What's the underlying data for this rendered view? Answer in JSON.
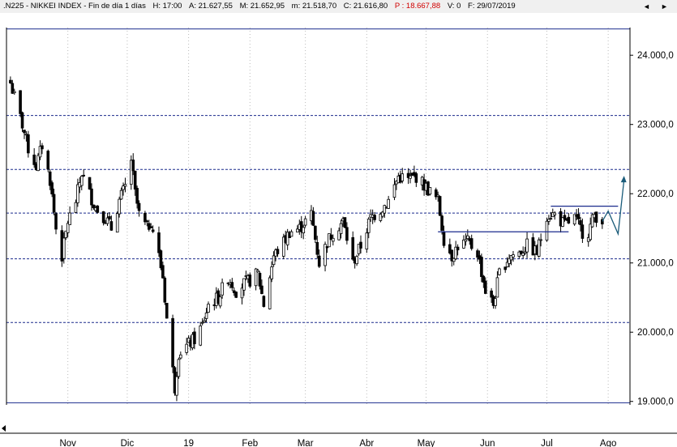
{
  "header": {
    "ticker": ".N225 - NIKKEI INDEX - Fin de día 1 días",
    "high": "H: 17:00",
    "open": "A: 21.627,55",
    "max": "M: 21.652,95",
    "min": "m: 21.518,70",
    "close": "C: 21.616,80",
    "period": "P : 18.667,88",
    "volume": "V: 0",
    "date": "F: 29/07/2019",
    "scroll_left": "◄",
    "scroll_right": "►"
  },
  "chart_data": {
    "type": "candlestick",
    "title": "",
    "xlabel": "",
    "ylabel": "",
    "ylim": [
      18950,
      24400
    ],
    "y_tick_labels": [
      "19.000,0",
      "20.000,0",
      "21.000,0",
      "22.000,0",
      "23.000,0",
      "24.000,0"
    ],
    "y_ticks": [
      19000,
      20000,
      21000,
      22000,
      23000,
      24000
    ],
    "x_tick_labels": [
      "Nov",
      "Dic",
      "19",
      "Feb",
      "Mar",
      "Abr",
      "May",
      "Jun",
      "Jul",
      "Ago"
    ],
    "grid": "vertical-dotted",
    "horizontal_levels": [
      24380,
      23130,
      22350,
      21720,
      21060,
      20140,
      18980
    ],
    "resistance_lines": [
      {
        "from": "2019-05-07",
        "to": "2019-07-12",
        "value": 21450
      },
      {
        "from": "2019-07-03",
        "to": "2019-08-06",
        "value": 21820
      }
    ],
    "projection_path": [
      {
        "date": "2019-07-29",
        "value": 21600
      },
      {
        "date": "2019-08-01",
        "value": 21750
      },
      {
        "date": "2019-08-06",
        "value": 21420
      },
      {
        "date": "2019-08-09",
        "value": 22200
      }
    ],
    "price_path": [
      [
        "2018-10-03",
        23600
      ],
      [
        "2018-10-09",
        23000
      ],
      [
        "2018-10-12",
        22650
      ],
      [
        "2018-10-16",
        22400
      ],
      [
        "2018-10-19",
        22700
      ],
      [
        "2018-10-23",
        22200
      ],
      [
        "2018-10-26",
        21500
      ],
      [
        "2018-10-29",
        21100
      ],
      [
        "2018-11-01",
        21600
      ],
      [
        "2018-11-05",
        21900
      ],
      [
        "2018-11-08",
        22300
      ],
      [
        "2018-11-12",
        22000
      ],
      [
        "2018-11-15",
        21800
      ],
      [
        "2018-11-20",
        21650
      ],
      [
        "2018-11-23",
        21500
      ],
      [
        "2018-11-27",
        21900
      ],
      [
        "2018-11-30",
        22100
      ],
      [
        "2018-12-03",
        22500
      ],
      [
        "2018-12-05",
        22000
      ],
      [
        "2018-12-07",
        21700
      ],
      [
        "2018-12-11",
        21500
      ],
      [
        "2018-12-13",
        21600
      ],
      [
        "2018-12-17",
        21100
      ],
      [
        "2018-12-19",
        20800
      ],
      [
        "2018-12-21",
        20200
      ],
      [
        "2018-12-25",
        19200
      ],
      [
        "2018-12-27",
        19700
      ],
      [
        "2019-01-04",
        19900
      ],
      [
        "2019-01-08",
        20100
      ],
      [
        "2019-01-11",
        20400
      ],
      [
        "2019-01-16",
        20500
      ],
      [
        "2019-01-21",
        20800
      ],
      [
        "2019-01-25",
        20600
      ],
      [
        "2019-01-29",
        20700
      ],
      [
        "2019-02-01",
        20750
      ],
      [
        "2019-02-05",
        20850
      ],
      [
        "2019-02-08",
        20400
      ],
      [
        "2019-02-13",
        21100
      ],
      [
        "2019-02-18",
        21300
      ],
      [
        "2019-02-21",
        21450
      ],
      [
        "2019-02-26",
        21500
      ],
      [
        "2019-03-04",
        21700
      ],
      [
        "2019-03-08",
        21000
      ],
      [
        "2019-03-12",
        21300
      ],
      [
        "2019-03-15",
        21450
      ],
      [
        "2019-03-20",
        21600
      ],
      [
        "2019-03-25",
        21000
      ],
      [
        "2019-03-29",
        21250
      ],
      [
        "2019-04-03",
        21650
      ],
      [
        "2019-04-09",
        21800
      ],
      [
        "2019-04-12",
        21900
      ],
      [
        "2019-04-17",
        22250
      ],
      [
        "2019-04-22",
        22200
      ],
      [
        "2019-04-26",
        22250
      ],
      [
        "2019-05-07",
        21900
      ],
      [
        "2019-05-10",
        21350
      ],
      [
        "2019-05-14",
        21100
      ],
      [
        "2019-05-17",
        21250
      ],
      [
        "2019-05-22",
        21300
      ],
      [
        "2019-05-27",
        21150
      ],
      [
        "2019-05-31",
        20600
      ],
      [
        "2019-06-04",
        20400
      ],
      [
        "2019-06-07",
        20850
      ],
      [
        "2019-06-12",
        21100
      ],
      [
        "2019-06-17",
        21150
      ],
      [
        "2019-06-21",
        21250
      ],
      [
        "2019-06-26",
        21150
      ],
      [
        "2019-07-01",
        21700
      ],
      [
        "2019-07-05",
        21700
      ],
      [
        "2019-07-10",
        21550
      ],
      [
        "2019-07-15",
        21650
      ],
      [
        "2019-07-19",
        21450
      ],
      [
        "2019-07-22",
        21450
      ],
      [
        "2019-07-25",
        21700
      ],
      [
        "2019-07-29",
        21620
      ]
    ],
    "candle_amplitude": 220
  },
  "colors": {
    "background": "#ffffff",
    "header_bg": "#f0f0f0",
    "axis": "#000000",
    "level_line": "#1a2a8c",
    "resistance": "#1a2a8c",
    "projection": "#1b5c7a",
    "candle_up": "#ffffff",
    "candle_down": "#000000",
    "grid": "#bbbbbb",
    "period_text": "#d00000"
  }
}
